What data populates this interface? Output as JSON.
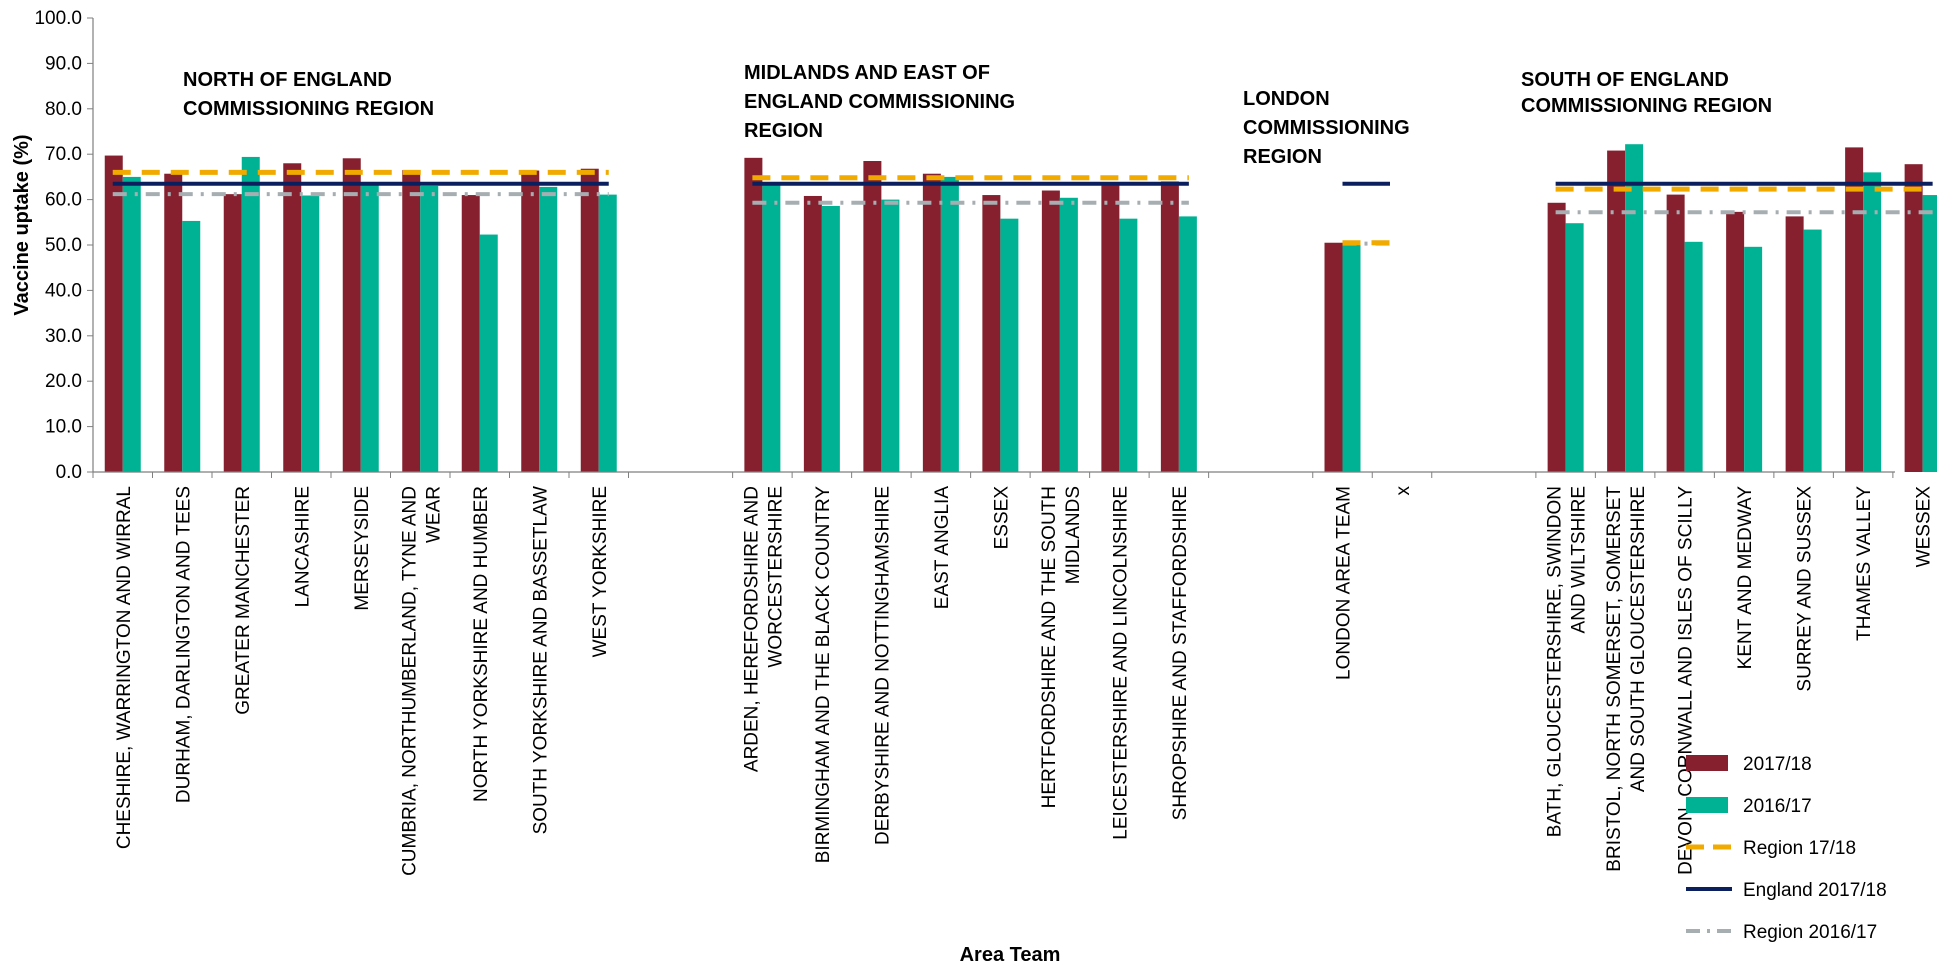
{
  "chart_data": {
    "type": "bar",
    "ylabel": "Vaccine uptake (%)",
    "xlabel": "Area Team",
    "ylim": [
      0,
      100
    ],
    "yticks": [
      "0.0",
      "10.0",
      "20.0",
      "30.0",
      "40.0",
      "50.0",
      "60.0",
      "70.0",
      "80.0",
      "90.0",
      "100.0"
    ],
    "england_2017_18": 63.5,
    "colors": {
      "bar_2017_18": "#86202F",
      "bar_2016_17": "#00B294",
      "region_17_18": "#F0AA00",
      "england_2017_18": "#0B1F5E",
      "region_16_17": "#A7AEB2"
    },
    "regions": [
      {
        "title": [
          "NORTH OF ENGLAND",
          "COMMISSIONING REGION"
        ],
        "region_17_18": 66.0,
        "region_16_17": 61.2,
        "teams": [
          {
            "label": [
              "CHESHIRE, WARRINGTON AND WIRRAL"
            ],
            "v1718": 69.7,
            "v1617": 65.0
          },
          {
            "label": [
              "DURHAM, DARLINGTON AND TEES"
            ],
            "v1718": 65.7,
            "v1617": 55.3
          },
          {
            "label": [
              "GREATER MANCHESTER"
            ],
            "v1718": 61.2,
            "v1617": 69.4
          },
          {
            "label": [
              "LANCASHIRE"
            ],
            "v1718": 68.0,
            "v1617": 60.9
          },
          {
            "label": [
              "MERSEYSIDE"
            ],
            "v1718": 69.1,
            "v1617": 63.5
          },
          {
            "label": [
              "CUMBRIA, NORTHUMBERLAND, TYNE AND",
              "WEAR"
            ],
            "v1718": 66.5,
            "v1617": 63.0
          },
          {
            "label": [
              "NORTH YORKSHIRE AND HUMBER"
            ],
            "v1718": 61.0,
            "v1617": 52.3
          },
          {
            "label": [
              "SOUTH YORKSHIRE AND BASSETLAW"
            ],
            "v1718": 66.4,
            "v1617": 62.8
          },
          {
            "label": [
              "WEST YORKSHIRE"
            ],
            "v1718": 66.8,
            "v1617": 61.1
          }
        ]
      },
      {
        "title": [
          "MIDLANDS AND EAST OF",
          "ENGLAND COMMISSIONING",
          "REGION"
        ],
        "region_17_18": 64.8,
        "region_16_17": 59.3,
        "teams": [
          {
            "label": [
              "ARDEN, HEREFORDSHIRE AND",
              "WORCESTERSHIRE"
            ],
            "v1718": 69.2,
            "v1617": 63.2
          },
          {
            "label": [
              "BIRMINGHAM AND THE BLACK COUNTRY"
            ],
            "v1718": 60.8,
            "v1617": 58.6
          },
          {
            "label": [
              "DERBYSHIRE AND NOTTINGHAMSHIRE"
            ],
            "v1718": 68.5,
            "v1617": 60.0
          },
          {
            "label": [
              "EAST ANGLIA"
            ],
            "v1718": 65.7,
            "v1617": 65.0
          },
          {
            "label": [
              "ESSEX"
            ],
            "v1718": 61.0,
            "v1617": 55.8
          },
          {
            "label": [
              "HERTFORDSHIRE AND THE SOUTH",
              "MIDLANDS"
            ],
            "v1718": 62.0,
            "v1617": 60.4
          },
          {
            "label": [
              "LEICESTERSHIRE AND LINCOLNSHIRE"
            ],
            "v1718": 63.1,
            "v1617": 55.8
          },
          {
            "label": [
              "SHROPSHIRE AND STAFFORDSHIRE"
            ],
            "v1718": 64.0,
            "v1617": 56.3
          }
        ]
      },
      {
        "title": [
          "LONDON",
          "COMMISSIONING",
          "REGION"
        ],
        "region_17_18": 50.5,
        "region_16_17": 50.3,
        "teams": [
          {
            "label": [
              "LONDON AREA TEAM"
            ],
            "v1718": 50.5,
            "v1617": 50.3
          },
          {
            "label": [
              "x"
            ],
            "v1718": null,
            "v1617": null
          }
        ]
      },
      {
        "title": [
          "SOUTH OF ENGLAND",
          "COMMISSIONING REGION"
        ],
        "region_17_18": 62.3,
        "region_16_17": 57.2,
        "teams": [
          {
            "label": [
              "BATH, GLOUCESTERSHIRE, SWINDON",
              "AND WILTSHIRE"
            ],
            "v1718": 59.3,
            "v1617": 54.8
          },
          {
            "label": [
              "BRISTOL, NORTH SOMERSET, SOMERSET",
              "AND SOUTH GLOUCESTERSHIRE"
            ],
            "v1718": 70.8,
            "v1617": 72.2
          },
          {
            "label": [
              "DEVON, CORNWALL AND ISLES OF SCILLY"
            ],
            "v1718": 61.1,
            "v1617": 50.7
          },
          {
            "label": [
              "KENT AND MEDWAY"
            ],
            "v1718": 57.3,
            "v1617": 49.6
          },
          {
            "label": [
              "SURREY AND SUSSEX"
            ],
            "v1718": 56.3,
            "v1617": 53.4
          },
          {
            "label": [
              "THAMES VALLEY"
            ],
            "v1718": 71.5,
            "v1617": 66.0
          },
          {
            "label": [
              "WESSEX"
            ],
            "v1718": 67.8,
            "v1617": 61.0
          }
        ]
      }
    ],
    "legend": {
      "position": "bottom-right",
      "items": [
        {
          "label": "2017/18",
          "kind": "bar",
          "color": "#86202F"
        },
        {
          "label": "2016/17",
          "kind": "bar",
          "color": "#00B294"
        },
        {
          "label": "Region 17/18",
          "kind": "dash",
          "color": "#F0AA00"
        },
        {
          "label": "England 2017/18",
          "kind": "solid",
          "color": "#0B1F5E"
        },
        {
          "label": "Region 2016/17",
          "kind": "dashdot",
          "color": "#A7AEB2"
        }
      ]
    }
  }
}
